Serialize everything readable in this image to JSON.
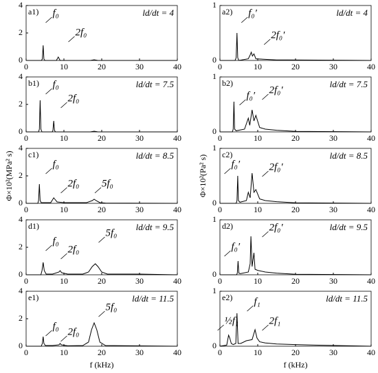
{
  "chart_data": [
    {
      "type": "line",
      "label": "a1)",
      "ratio": "ld/dt = 4",
      "peak_labels": [
        "f₀",
        "2f₀"
      ],
      "color": "#000000",
      "xlim": [
        0,
        40
      ],
      "ylim": [
        0,
        4
      ],
      "xticks": [
        0,
        10,
        20,
        30,
        40
      ],
      "yticks": [
        0,
        2,
        4
      ],
      "x": [
        0,
        4,
        4.3,
        4.5,
        4.7,
        5,
        8,
        8.5,
        9,
        17,
        18,
        19,
        40
      ],
      "values": [
        0,
        0,
        0.1,
        1.1,
        0.1,
        0,
        0,
        0.25,
        0,
        0,
        0.05,
        0,
        0
      ]
    },
    {
      "type": "line",
      "label": "a2)",
      "ratio": "ld/dt = 4",
      "peak_labels": [
        "f₀′",
        "2f₀′"
      ],
      "color": "#000000",
      "xlim": [
        0,
        40
      ],
      "ylim": [
        0,
        1
      ],
      "xticks": [
        0,
        10,
        20,
        30,
        40
      ],
      "yticks": [
        0,
        1
      ],
      "x": [
        0,
        4,
        4.3,
        4.5,
        4.7,
        5,
        7.5,
        8,
        8.3,
        8.6,
        9,
        9.5,
        12,
        15,
        18,
        40
      ],
      "values": [
        0,
        0,
        0.05,
        0.5,
        0.05,
        0,
        0.03,
        0.1,
        0.15,
        0.08,
        0.12,
        0.03,
        0.02,
        0.01,
        0.01,
        0
      ]
    },
    {
      "type": "line",
      "label": "b1)",
      "ratio": "ld/dt = 7.5",
      "peak_labels": [
        "f₀",
        "2f₀"
      ],
      "color": "#000000",
      "xlim": [
        0,
        40
      ],
      "ylim": [
        0,
        4
      ],
      "xticks": [
        0,
        10,
        20,
        30,
        40
      ],
      "yticks": [
        0,
        2,
        4
      ],
      "x": [
        0,
        3.3,
        3.5,
        3.7,
        3.9,
        4.2,
        6.9,
        7.1,
        7.3,
        7.5,
        7.8,
        17,
        18,
        19,
        40
      ],
      "values": [
        0,
        0,
        0.2,
        2.3,
        0.2,
        0,
        0,
        0.1,
        0.8,
        0.1,
        0,
        0,
        0.05,
        0,
        0
      ]
    },
    {
      "type": "line",
      "label": "b2)",
      "ratio": "ld/dt = 7.5",
      "peak_labels": [
        "f₀′",
        "2f₀′"
      ],
      "color": "#000000",
      "xlim": [
        0,
        40
      ],
      "ylim": [
        0,
        1
      ],
      "xticks": [
        0,
        10,
        20,
        30,
        40
      ],
      "yticks": [
        0,
        1
      ],
      "x": [
        0,
        3.3,
        3.5,
        3.7,
        3.9,
        4.3,
        6.5,
        7.5,
        7.9,
        8.5,
        9,
        9.5,
        10.5,
        12,
        15,
        20,
        40
      ],
      "values": [
        0,
        0,
        0.05,
        0.55,
        0.05,
        0.02,
        0.05,
        0.25,
        0.12,
        0.4,
        0.2,
        0.3,
        0.08,
        0.05,
        0.03,
        0.01,
        0
      ]
    },
    {
      "type": "line",
      "label": "c1)",
      "ratio": "ld/dt = 8.5",
      "peak_labels": [
        "f₀",
        "2f₀",
        "5f₀"
      ],
      "color": "#000000",
      "xlim": [
        0,
        40
      ],
      "ylim": [
        0,
        4
      ],
      "xticks": [
        0,
        10,
        20,
        30,
        40
      ],
      "yticks": [
        0,
        2,
        4
      ],
      "x": [
        0,
        3.1,
        3.3,
        3.5,
        3.7,
        4,
        6.5,
        7.3,
        7.6,
        8.2,
        10,
        16,
        17.5,
        18,
        18.5,
        19.5,
        21,
        40
      ],
      "values": [
        0,
        0,
        0.2,
        1.4,
        0.2,
        0.05,
        0.05,
        0.4,
        0.3,
        0.1,
        0.05,
        0.05,
        0.2,
        0.3,
        0.2,
        0.05,
        0.02,
        0
      ]
    },
    {
      "type": "line",
      "label": "c2)",
      "ratio": "ld/dt = 8.5",
      "peak_labels": [
        "f₀′",
        "2f₀′"
      ],
      "color": "#000000",
      "xlim": [
        0,
        40
      ],
      "ylim": [
        0,
        1
      ],
      "xticks": [
        0,
        10,
        20,
        30,
        40
      ],
      "yticks": [
        0,
        1
      ],
      "x": [
        0,
        4.3,
        4.5,
        4.7,
        4.9,
        5.3,
        7,
        7.5,
        8,
        8.5,
        9,
        9.5,
        10.5,
        12,
        15,
        20,
        40
      ],
      "values": [
        0,
        0,
        0.05,
        0.5,
        0.05,
        0.02,
        0.05,
        0.2,
        0.1,
        0.55,
        0.2,
        0.25,
        0.08,
        0.05,
        0.03,
        0.01,
        0
      ]
    },
    {
      "type": "line",
      "label": "d1)",
      "ratio": "ld/dt = 9.5",
      "peak_labels": [
        "f₀",
        "2f₀",
        "5f₀"
      ],
      "color": "#000000",
      "xlim": [
        0,
        40
      ],
      "ylim": [
        0,
        4
      ],
      "xticks": [
        0,
        10,
        20,
        30,
        40
      ],
      "yticks": [
        0,
        2,
        4
      ],
      "x": [
        0,
        3.9,
        4.2,
        4.5,
        4.8,
        5.3,
        7,
        8.7,
        9,
        9.4,
        11,
        15,
        16.5,
        17.5,
        18.3,
        19,
        20,
        21.5,
        30,
        40
      ],
      "values": [
        0,
        0,
        0.3,
        0.9,
        0.3,
        0.05,
        0.05,
        0.2,
        0.3,
        0.15,
        0.05,
        0.05,
        0.2,
        0.6,
        0.8,
        0.6,
        0.2,
        0.05,
        0.05,
        0
      ]
    },
    {
      "type": "line",
      "label": "d2)",
      "ratio": "ld/dt = 9.5",
      "peak_labels": [
        "f₀′",
        "2f₀′"
      ],
      "color": "#000000",
      "xlim": [
        0,
        40
      ],
      "ylim": [
        0,
        1
      ],
      "xticks": [
        0,
        10,
        20,
        30,
        40
      ],
      "yticks": [
        0,
        1
      ],
      "x": [
        0,
        4.4,
        4.6,
        4.8,
        5,
        5.4,
        7.5,
        8,
        8.2,
        8.5,
        9,
        9.3,
        10,
        12,
        15,
        20,
        40
      ],
      "values": [
        0,
        0,
        0.03,
        0.25,
        0.03,
        0.02,
        0.05,
        0.2,
        0.7,
        0.15,
        0.4,
        0.1,
        0.08,
        0.05,
        0.03,
        0.01,
        0
      ]
    },
    {
      "type": "line",
      "label": "e1)",
      "ratio": "ld/dt = 11.5",
      "peak_labels": [
        "f₀",
        "2f₀",
        "5f₀"
      ],
      "color": "#000000",
      "xlim": [
        0,
        40
      ],
      "ylim": [
        0,
        4
      ],
      "xticks": [
        0,
        10,
        20,
        30,
        40
      ],
      "yticks": [
        0,
        2,
        4
      ],
      "x": [
        0,
        4,
        4.3,
        4.5,
        4.7,
        5.1,
        7,
        8.7,
        9,
        9.3,
        11,
        15,
        16.5,
        17.3,
        18,
        18.7,
        19.5,
        21,
        40
      ],
      "values": [
        0,
        0,
        0.2,
        0.7,
        0.2,
        0.05,
        0.05,
        0.1,
        0.2,
        0.1,
        0.03,
        0.05,
        0.3,
        1.2,
        1.7,
        1.2,
        0.3,
        0.05,
        0
      ]
    },
    {
      "type": "line",
      "label": "e2)",
      "ratio": "ld/dt = 11.5",
      "peak_labels": [
        "½f₁",
        "f₁",
        "2f₁"
      ],
      "color": "#000000",
      "xlim": [
        0,
        40
      ],
      "ylim": [
        0,
        1
      ],
      "xticks": [
        0,
        10,
        20,
        30,
        40
      ],
      "yticks": [
        0,
        1
      ],
      "x": [
        0,
        1.8,
        2.3,
        2.6,
        3,
        3.5,
        4.2,
        4.5,
        4.8,
        5.5,
        7,
        8.5,
        9.3,
        9.8,
        10.5,
        12,
        15,
        20,
        25,
        40
      ],
      "values": [
        0,
        0.02,
        0.2,
        0.15,
        0.05,
        0.03,
        0.05,
        0.6,
        0.05,
        0.05,
        0.1,
        0.12,
        0.3,
        0.15,
        0.08,
        0.06,
        0.04,
        0.03,
        0.02,
        0
      ]
    }
  ],
  "axis_labels": {
    "y_left": "Φ×10²(MPa² s)",
    "y_right": "Φ×10²(Pa² s)",
    "x_left": "f (kHz)",
    "x_right": "f (kHz)"
  }
}
